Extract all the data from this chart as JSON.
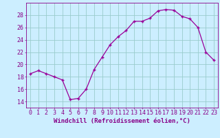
{
  "x": [
    0,
    1,
    2,
    3,
    4,
    5,
    6,
    7,
    8,
    9,
    10,
    11,
    12,
    13,
    14,
    15,
    16,
    17,
    18,
    19,
    20,
    21,
    22,
    23
  ],
  "y": [
    18.5,
    19.0,
    18.5,
    18.0,
    17.5,
    14.3,
    14.5,
    16.0,
    19.2,
    21.2,
    23.2,
    24.5,
    25.5,
    27.0,
    27.0,
    27.5,
    28.7,
    28.9,
    28.8,
    27.8,
    27.4,
    26.0,
    22.0,
    20.7
  ],
  "line_color": "#990099",
  "marker": "+",
  "bg_color": "#cceeff",
  "grid_color": "#99cccc",
  "ylim": [
    13,
    30
  ],
  "yticks": [
    14,
    16,
    18,
    20,
    22,
    24,
    26,
    28
  ],
  "xlim": [
    -0.5,
    23.5
  ],
  "xticks": [
    0,
    1,
    2,
    3,
    4,
    5,
    6,
    7,
    8,
    9,
    10,
    11,
    12,
    13,
    14,
    15,
    16,
    17,
    18,
    19,
    20,
    21,
    22,
    23
  ],
  "xlabel": "Windchill (Refroidissement éolien,°C)",
  "xlabel_fontsize": 6.5,
  "tick_fontsize": 6,
  "axis_color": "#880088"
}
